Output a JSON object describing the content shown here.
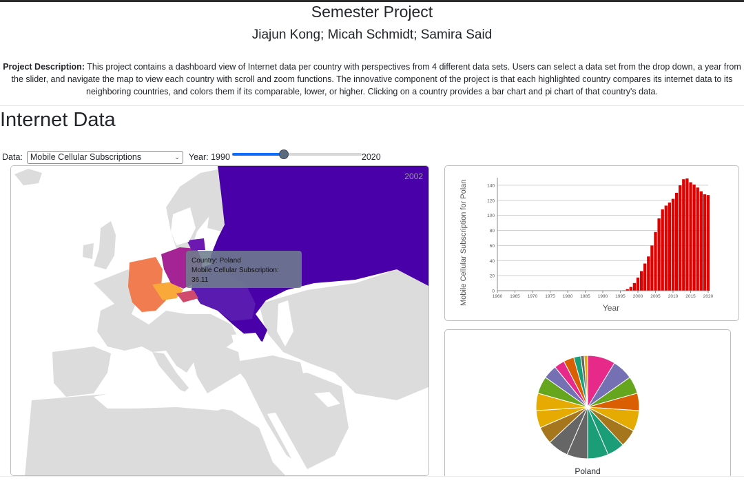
{
  "header": {
    "title": "Semester Project",
    "authors": "Jiajun Kong; Micah Schmidt; Samira Said",
    "description_label": "Project Description:",
    "description": "This project contains a dashboard view of Internet data per country with perspectives from 4 different data sets. Users can select a data set from the drop down, a year from the slider, and navigate the map to view each country with scroll and zoom functions. The innovative component of the project is that each highlighted country compares its internet data to its neighboring countries, and colors them if its comparable, lower, or higher. Clicking on a country provides a bar chart and pi chart of that country's data."
  },
  "section": {
    "title": "Internet Data"
  },
  "controls": {
    "data_label": "Data:",
    "selected_dataset": "Mobile Cellular Subscriptions",
    "year_label": "Year: 1990",
    "year_min": 1990,
    "year_max_label": "2020",
    "year_max": 2020,
    "year_value": 2002
  },
  "map": {
    "year_display": "2002",
    "tooltip_line1": "Country: Poland",
    "tooltip_line2": "Mobile Cellular Subscription: 36.11",
    "colors": {
      "land": "#dcdcdc",
      "russia": "#4a00a8",
      "poland": "#a42395",
      "germany": "#f07c50",
      "czechia": "#f9a83a",
      "neighbor": "#5a1bb0"
    }
  },
  "chart_data": [
    {
      "type": "bar",
      "ylabel": "Mobile Cellular Subscription for Polan",
      "xlabel": "Year",
      "color": "#e00000",
      "x": [
        1996,
        1997,
        1998,
        1999,
        2000,
        2001,
        2002,
        2003,
        2004,
        2005,
        2006,
        2007,
        2008,
        2009,
        2010,
        2011,
        2012,
        2013,
        2014,
        2015,
        2016,
        2017,
        2018,
        2019,
        2020
      ],
      "values": [
        0.6,
        2.1,
        5.0,
        10.2,
        17.5,
        26.0,
        36.1,
        45.5,
        60.0,
        78.0,
        96.0,
        108.0,
        113.0,
        117.0,
        122.0,
        130.0,
        140.0,
        148.0,
        149.0,
        144.0,
        141.0,
        137.0,
        132.0,
        128.0,
        127.0
      ],
      "x_ticks": [
        1960,
        1965,
        1970,
        1975,
        1980,
        1985,
        1990,
        1995,
        2000,
        2005,
        2010,
        2015,
        2020
      ],
      "y_ticks": [
        0,
        20,
        40,
        60,
        80,
        100,
        120,
        140
      ],
      "ylim": [
        0,
        150
      ],
      "xlim": [
        1960,
        2020
      ],
      "grid": true
    },
    {
      "type": "pie",
      "label": "Poland",
      "values": [
        8,
        6,
        5,
        5,
        6,
        5,
        5,
        6,
        6,
        6,
        5,
        5,
        5,
        5,
        4,
        3,
        3,
        2,
        1,
        1
      ],
      "colors": [
        "#e7298a",
        "#7570b3",
        "#66a61e",
        "#d95f02",
        "#e6ab02",
        "#a6761d",
        "#1b9e77",
        "#1b9e77",
        "#666666",
        "#666666",
        "#a6761d",
        "#e6ab02",
        "#e6ab02",
        "#66a61e",
        "#7570b3",
        "#e7298a",
        "#d95f02",
        "#1b9e77",
        "#666666",
        "#e6ab02"
      ]
    }
  ]
}
